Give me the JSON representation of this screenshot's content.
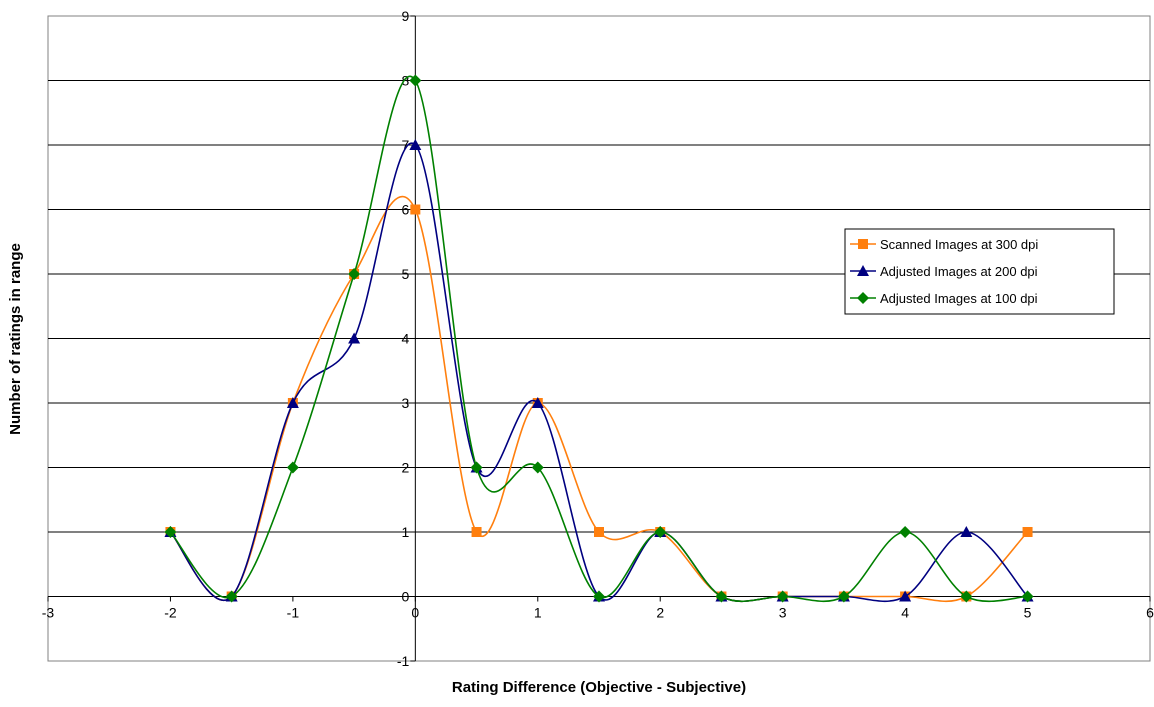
{
  "chart_data": {
    "type": "line",
    "smoothed": true,
    "title": "",
    "xlabel": "Rating Difference (Objective - Subjective)",
    "ylabel": "Number of ratings in range",
    "xlim": [
      -3,
      6
    ],
    "ylim": [
      -1,
      9
    ],
    "xticks": [
      -3,
      -2,
      -1,
      0,
      1,
      2,
      3,
      4,
      5,
      6
    ],
    "yticks": [
      -1,
      0,
      1,
      2,
      3,
      4,
      5,
      6,
      7,
      8,
      9
    ],
    "grid": "horizontal",
    "legend_position": "right",
    "x": [
      -2,
      -1.5,
      -1,
      -0.5,
      0,
      0.5,
      1,
      1.5,
      2,
      2.5,
      3,
      3.5,
      4,
      4.5,
      5
    ],
    "series": [
      {
        "name": "Scanned Images at 300 dpi",
        "color": "#ff7f0e",
        "marker": "square",
        "values": [
          1,
          0,
          3,
          5,
          6,
          1,
          3,
          1,
          1,
          0,
          0,
          0,
          0,
          0,
          1
        ]
      },
      {
        "name": "Adjusted Images at 200 dpi",
        "color": "#000080",
        "marker": "triangle",
        "values": [
          1,
          0,
          3,
          4,
          7,
          2,
          3,
          0,
          1,
          0,
          0,
          0,
          0,
          1,
          0
        ]
      },
      {
        "name": "Adjusted Images at 100 dpi",
        "color": "#008000",
        "marker": "diamond",
        "values": [
          1,
          0,
          2,
          5,
          8,
          2,
          2,
          0,
          1,
          0,
          0,
          0,
          1,
          0,
          0
        ]
      }
    ]
  }
}
